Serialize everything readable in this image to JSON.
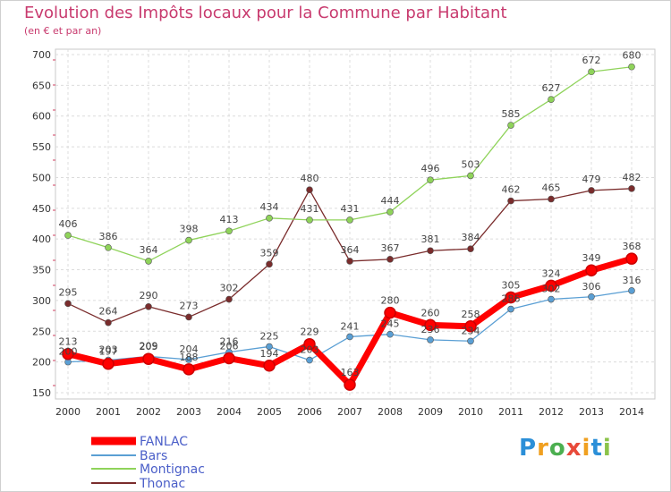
{
  "chart_data": {
    "type": "line",
    "title": "Evolution des Impôts locaux pour la Commune par Habitant",
    "subtitle": "(en € et par an)",
    "x": [
      "2000",
      "2001",
      "2002",
      "2003",
      "2004",
      "2005",
      "2006",
      "2007",
      "2008",
      "2009",
      "2010",
      "2011",
      "2012",
      "2013",
      "2014"
    ],
    "ylim": [
      150,
      700
    ],
    "yticks": [
      150,
      200,
      250,
      300,
      350,
      400,
      450,
      500,
      550,
      600,
      650,
      700
    ],
    "grid": true,
    "legend_position": "bottom-left",
    "series": [
      {
        "name": "FANLAC",
        "color": "#ff0000",
        "values": [
          213,
          197,
          205,
          188,
          206,
          194,
          229,
          163,
          280,
          260,
          258,
          305,
          324,
          349,
          368
        ],
        "labels": [
          "213",
          "197",
          "205",
          "188",
          "206",
          "194",
          "229",
          "163",
          "280",
          "260",
          "258",
          "305",
          "324",
          "349",
          "368"
        ]
      },
      {
        "name": "Bars",
        "color": "#5a9fd4",
        "values": [
          200,
          203,
          209,
          204,
          216,
          225,
          203,
          241,
          245,
          236,
          234,
          286,
          302,
          306,
          316
        ],
        "labels": [
          "200",
          "203",
          "209",
          "204",
          "216",
          "225",
          "203",
          "241",
          "245",
          "236",
          "234",
          "286",
          "302",
          "306",
          "316"
        ]
      },
      {
        "name": "Montignac",
        "color": "#8fd35a",
        "values": [
          406,
          386,
          364,
          398,
          413,
          434,
          431,
          431,
          444,
          496,
          503,
          585,
          627,
          672,
          680
        ],
        "labels": [
          "406",
          "386",
          "364",
          "398",
          "413",
          "434",
          "431",
          "431",
          "444",
          "496",
          "503",
          "585",
          "627",
          "672",
          "680"
        ]
      },
      {
        "name": "Thonac",
        "color": "#7a2c2c",
        "values": [
          295,
          264,
          290,
          273,
          302,
          359,
          480,
          364,
          367,
          381,
          384,
          462,
          465,
          479,
          482
        ],
        "labels": [
          "295",
          "264",
          "290",
          "273",
          "302",
          "359",
          "480",
          "364",
          "367",
          "381",
          "384",
          "462",
          "465",
          "479",
          "482"
        ]
      }
    ]
  },
  "logo": {
    "letters": [
      "P",
      "r",
      "o",
      "x",
      "i",
      "t",
      "i"
    ],
    "colors": [
      "#2b8fd8",
      "#f0a020",
      "#4caf50",
      "#e84a3a",
      "#f0a020",
      "#2b8fd8",
      "#8bc34a"
    ]
  }
}
